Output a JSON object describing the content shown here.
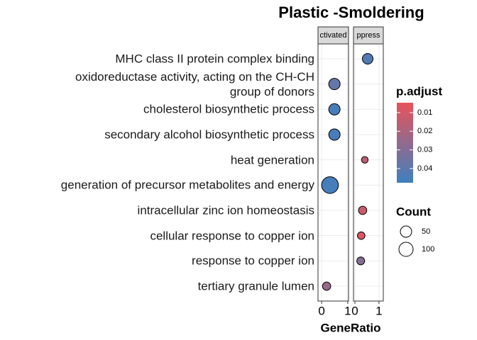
{
  "chart_data": {
    "type": "dot",
    "title": "Plastic -Smoldering",
    "x_label": "GeneRatio",
    "categories": [
      "MHC class II protein complex binding",
      "oxidoreductase activity, acting on the CH-CH\ngroup of donors",
      "cholesterol biosynthetic process",
      "secondary alcohol biosynthetic process",
      "heat generation",
      "generation of precursor metabolites and energy",
      "intracellular zinc ion homeostasis",
      "cellular response to copper ion",
      "response to copper ion",
      "tertiary granule lumen"
    ],
    "facets": [
      {
        "name": "ctivated",
        "xlim": [
          -0.14,
          1.03
        ],
        "xticks": [
          0,
          1
        ],
        "values": [
          null,
          0.49,
          0.49,
          0.49,
          null,
          0.32,
          null,
          null,
          null,
          0.19
        ],
        "counts": [
          null,
          50,
          50,
          50,
          null,
          160,
          null,
          null,
          null,
          15
        ],
        "padjust": [
          null,
          0.038,
          0.045,
          0.045,
          null,
          0.046,
          null,
          null,
          null,
          0.025
        ]
      },
      {
        "name": "ppress",
        "xlim": [
          -0.06,
          1.18
        ],
        "xticks": [
          0,
          1
        ],
        "values": [
          0.53,
          null,
          null,
          null,
          0.41,
          null,
          0.32,
          0.26,
          0.24,
          null
        ],
        "counts": [
          40,
          null,
          null,
          null,
          5,
          null,
          15,
          10,
          12,
          null
        ],
        "padjust": [
          0.043,
          null,
          null,
          null,
          0.015,
          null,
          0.012,
          0.008,
          0.03,
          null
        ]
      }
    ],
    "color_legend": {
      "title": "p.adjust",
      "clim": [
        0.0047,
        0.0476
      ],
      "ticks": [
        0.01,
        0.02,
        0.03,
        0.04
      ],
      "low_color": "#e8535a",
      "high_color": "#3f80bf"
    },
    "size_legend": {
      "title": "Count",
      "values": [
        50,
        100
      ]
    },
    "grid": true
  }
}
